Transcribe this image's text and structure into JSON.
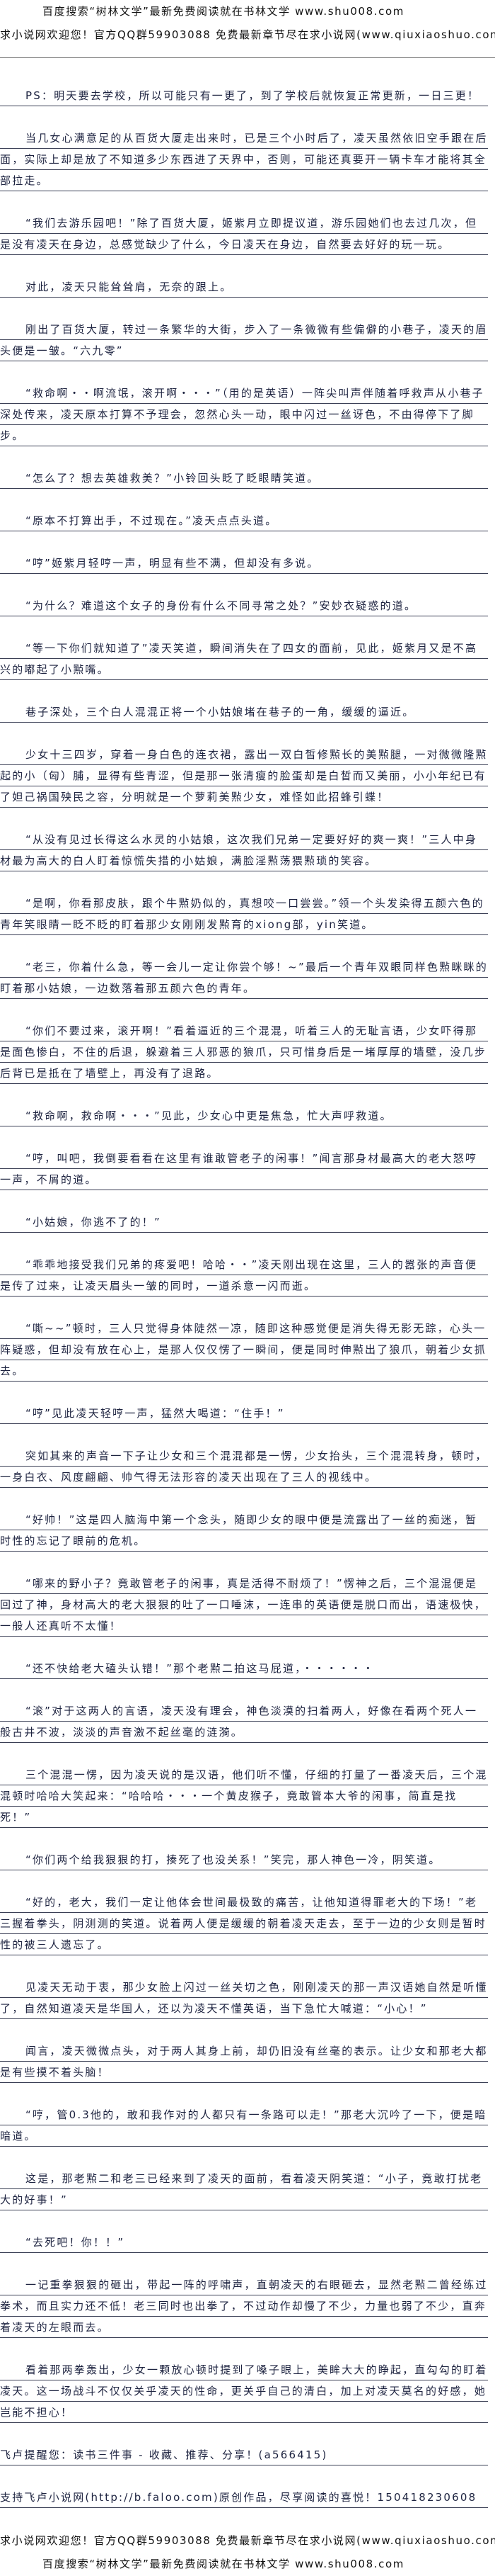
{
  "header": {
    "banner_baidu": "百度搜索“树林文学”最新免费阅读就在书林文学 www.shu008.com",
    "banner_qiuxiaoshuo": "求小说网欢迎您！官方QQ群59903088 免费最新章节尽在求小说网(www.qiuxiaoshuo.com)"
  },
  "paragraphs": [
    "PS：明天要去学校，所以可能只有一更了，到了学校后就恢复正常更新，一日三更！",
    "当几女心满意足的从百货大厦走出来时，已是三个小时后了，凌天虽然依旧空手跟在后面，实际上却是放了不知道多少东西进了天界中，否则，可能还真要开一辆卡车才能将其全部拉走。",
    "“我们去游乐园吧！”除了百货大厦，姬紫月立即提议道，游乐园她们也去过几次，但是没有凌天在身边，总感觉缺少了什么，今日凌天在身边，自然要去好好的玩一玩。",
    "对此，凌天只能耸耸肩，无奈的跟上。",
    "刚出了百货大厦，转过一条繁华的大街，步入了一条微微有些偏僻的小巷子，凌天的眉头便是一皱。“六九零”",
    "“救命啊・・啊流氓，滚开啊・・・”（用的是英语）一阵尖叫声伴随着呼救声从小巷子深处传来，凌天原本打算不予理会，忽然心头一动，眼中闪过一丝讶色，不由得停下了脚步。",
    "“怎么了？想去英雄救美？”小铃回头眨了眨眼睛笑道。",
    "“原本不打算出手，不过现在。”凌天点点头道。",
    "“哼”姬紫月轻哼一声，明显有些不满，但却没有多说。",
    "“为什么？难道这个女子的身份有什么不同寻常之处？”安妙衣疑惑的道。",
    "“等一下你们就知道了”凌天笑道，瞬间消失在了四女的面前，见此，姬紫月又是不高兴的嘟起了小㸃嘴。",
    "巷子深处，三个白人混混正将一个小姑娘堵在巷子的一角，缓缓的逼近。",
    "少女十三四岁，穿着一身白色的连衣裙，露出一双白皙修㸃长的美㸃腿，一对微微隆㸃起的小（匈）脯，显得有些青涩，但是那一张清瘦的脸蛋却是白皙而又美丽，小小年纪已有了妲己祸国殃民之容，分明就是一个萝莉美㸃少女，难怪如此招蜂引蝶！",
    "“从没有见过长得这么水灵的小姑娘，这次我们兄弟一定要好好的爽一爽！”三人中身材最为高大的白人盯着惊慌失措的小姑娘，满脸淫㸃荡猥㸃琐的笑容。",
    "“是啊，你看那皮肤，跟个牛㸃奶似的，真想咬一口尝尝。”领一个头发染得五颜六色的青年笑眼睛一眨不眨的盯着那少女刚刚发㸃育的xiong部，yin笑道。",
    "“老三，你着什么急，等一会儿一定让你尝个够！~”最后一个青年双眼同样色㸃眯眯的盯着那小姑娘，一边数落着那五颜六色的青年。",
    "“你们不要过来，滚开啊！”看着逼近的三个混混，听着三人的无耻言语，少女吓得那是面色惨白，不住的后退，躲避着三人邪恶的狼爪，只可惜身后是一堵厚厚的墙壁，没几步后背已是抵在了墙壁上，再没有了退路。",
    "“救命啊，救命啊・・・”见此，少女心中更是焦急，忙大声呼救道。",
    "“哼，叫吧，我倒要看看在这里有谁敢管老子的闲事！”闻言那身材最高大的老大怒哼一声，不屑的道。",
    "“小姑娘，你逃不了的！”",
    "“乖乖地接受我们兄弟的疼爱吧！哈哈・・”凌天刚出现在这里，三人的嚣张的声音便是传了过来，让凌天眉头一皱的同时，一道杀意一闪而逝。",
    "“嘶~~”顿时，三人只觉得身体陡然一凉，随即这种感觉便是消失得无影无踪，心头一阵疑惑，但却没有放在心上，是那人仅仅愣了一瞬间，便是同时伸㸃出了狼爪，朝着少女抓去。",
    "“哼”见此凌天轻哼一声，猛然大喝道：“住手！”",
    "突如其来的声音一下子让少女和三个混混都是一愣，少女抬头，三个混混转身，顿时，一身白衣、风度翩翩、帅气得无法形容的凌天出现在了三人的视线中。",
    "“好帅！”这是四人脑海中第一个念头，随即少女的眼中便是流露出了一丝的痴迷，暂时性的忘记了眼前的危机。",
    "“哪来的野小子？竟敢管老子的闲事，真是活得不耐烦了！”愣神之后，三个混混便是回过了神，身材高大的老大狠狠的吐了一口唾沫，一连串的英语便是脱口而出，语速极快，一般人还真听不太懂！",
    "“还不快给老大磕头认错！”那个老㸃二拍这马屁道，・・・・・・",
    "“滚”对于这两人的言语，凌天没有理会，神色淡漠的扫着两人，好像在看两个死人一般古井不波，淡淡的声音激不起丝毫的涟漪。",
    "三个混混一愣，因为凌天说的是汉语，他们听不懂，仔细的打量了一番凌天后，三个混混顿时哈哈大笑起来：“哈哈哈・・・一个黄皮猴子，竟敢管本大爷的闲事，简直是找死！”",
    "“你们两个给我狠狠的打，揍死了也没关系！”笑完，那人神色一冷，阴笑道。",
    "“好的，老大，我们一定让他体会世间最极致的痛苦，让他知道得罪老大的下场！”老三握着拳头，阴测测的笑道。说着两人便是缓缓的朝着凌天走去，至于一边的少女则是暂时性的被三人遗忘了。",
    "见凌天无动于衷，那少女脸上闪过一丝关切之色，刚刚凌天的那一声汉语她自然是听懂了，自然知道凌天是华国人，还以为凌天不懂英语，当下急忙大喊道：“小心！”",
    "闻言，凌天微微点头，对于两人其身上前，却仍旧没有丝毫的表示。让少女和那老大都是有些摸不着头脑！",
    "“哼，管0.3他的，敢和我作对的人都只有一条路可以走！”那老大沉吟了一下，便是暗暗道。",
    "这是，那老㸃二和老三已经来到了凌天的面前，看着凌天阴笑道：“小子，竟敢打扰老大的好事！”",
    "“去死吧！你！！”",
    "一记重拳狠狠的砸出，带起一阵的呼啸声，直朝凌天的右眼砸去，显然老㸃二曾经练过拳术，而且实力还不低！老三同时也出拳了，不过动作却慢了不少，力量也弱了不少，直奔着凌天的左眼而去。",
    "看着那两拳轰出，少女一颗放心顿时提到了嗓子眼上，美眸大大的睁起，直勾勾的盯着凌天。这一场战斗不仅仅关乎凌天的性命，更关乎自己的清白，加上对凌天莫名的好感，她岂能不担心！"
  ],
  "closing": {
    "reminder": "飞卢提醒您：读书三件事 - 收藏、推荐、分享！(a566415)",
    "support": "支持飞卢小说网(http://b.faloo.com)原创作品，尽享阅读的喜悦！150418230608"
  },
  "footer": {
    "banner_qiuxiaoshuo": "求小说网欢迎您！官方QQ群59903088 免费最新章节尽在求小说网(www.qiuxiaoshuo.com)",
    "banner_baidu": "百度搜索“树林文学”最新免费阅读就在书林文学 www.shu008.com"
  }
}
